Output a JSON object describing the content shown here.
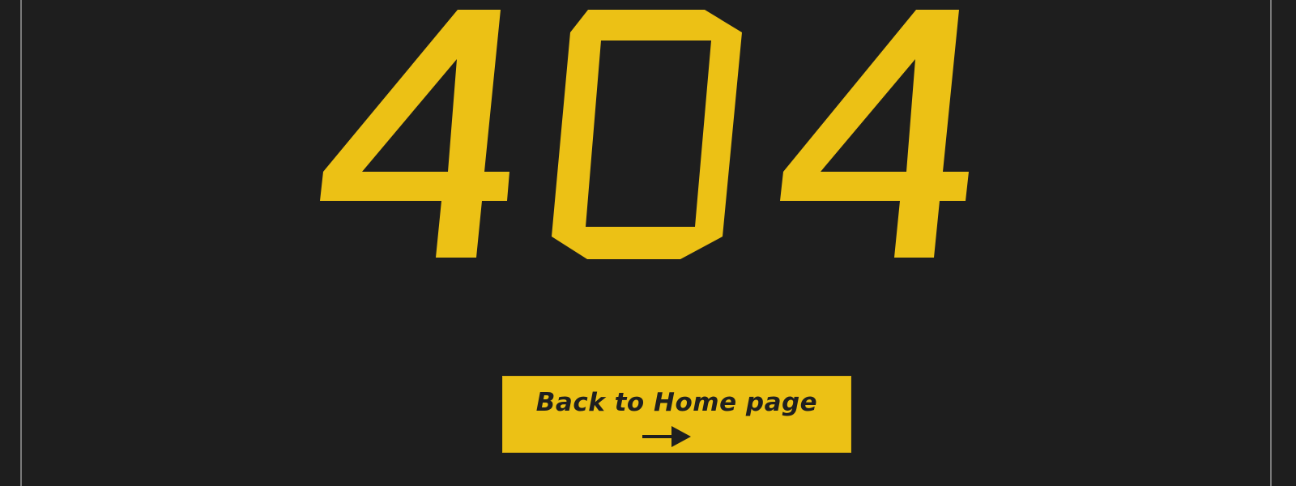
{
  "error": {
    "code": "404",
    "color": "#ecc115"
  },
  "actions": {
    "home_button_label": "Back to Home page",
    "home_button_icon": "arrow-right-icon"
  },
  "theme": {
    "background": "#1e1e1e",
    "accent": "#ecc115",
    "frame_line": "#7a7a7a"
  }
}
